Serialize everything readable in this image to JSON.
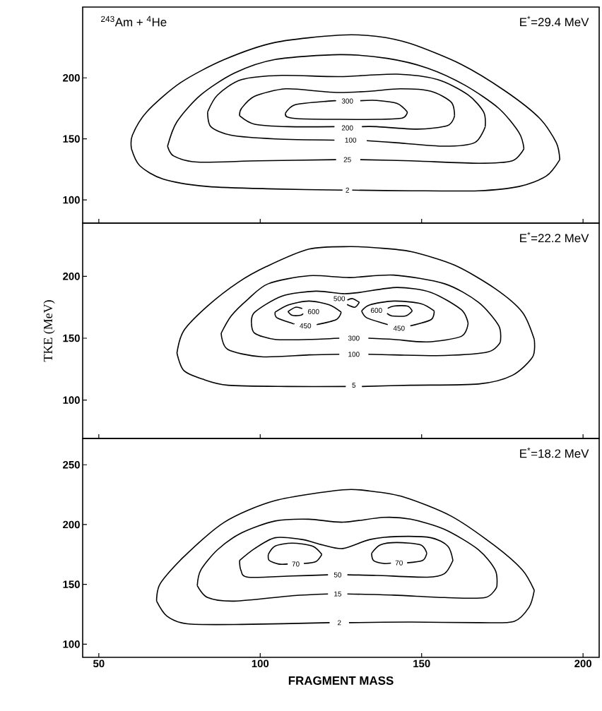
{
  "chart_data": [
    {
      "type": "line",
      "tick_labels": "y",
      "xlim": [
        45,
        205
      ],
      "ylim": [
        81,
        258
      ],
      "xticks": [
        50,
        100,
        150,
        200
      ],
      "yticks": [
        100,
        150,
        200
      ],
      "series": [
        {
          "color": "#000000",
          "x": [
            60.1,
            60.4,
            64.8,
            75.3,
            88.9,
            104.6,
            124.6,
            136.1,
            146.6,
            162.3,
            176.0,
            186.5,
            191.7,
            192.8
          ],
          "values": [
            142,
            153,
            172,
            196,
            215,
            229,
            235,
            234,
            228,
            211,
            189,
            167,
            147,
            133
          ]
        },
        {
          "color": "#000000",
          "x": [
            60.1,
            62.7,
            70.0,
            83.7,
            104.6,
            125.5,
            127,
            128.5,
            146.6,
            167.6,
            180.2,
            188.6,
            192.8
          ],
          "values": [
            142,
            128,
            117,
            111,
            109,
            108,
            null,
            108,
            107.5,
            107.5,
            111,
            119.5,
            133
          ]
        },
        {
          "color": "#000000",
          "x": [
            71.3,
            74.2,
            81.6,
            92.1,
            104.6,
            124.6,
            139.3,
            151.8,
            163.4,
            173.9,
            180.2,
            181.7
          ],
          "values": [
            144,
            164,
            186,
            204,
            215,
            219,
            216,
            208,
            194,
            175,
            155,
            142
          ]
        },
        {
          "color": "#000000",
          "x": [
            71.3,
            73.2,
            80.5,
            99.4,
            123.5,
            127,
            131,
            146.6,
            167.6,
            178.1,
            181.7
          ],
          "values": [
            144,
            136,
            131,
            132,
            133,
            null,
            133,
            132,
            130,
            132,
            142
          ]
        },
        {
          "color": "#000000",
          "x": [
            83.7,
            86.8,
            94.2,
            106.7,
            124.6,
            142.4,
            155.0,
            164.4,
            169.2,
            169.7
          ],
          "values": [
            172,
            186,
            198.5,
            202,
            201,
            203,
            198.5,
            186,
            172,
            160
          ]
        },
        {
          "color": "#000000",
          "x": [
            83.7,
            84.7,
            91.0,
            104.6,
            123,
            128,
            133,
            141.4,
            157.1,
            166.5,
            169.7
          ],
          "values": [
            172,
            160,
            153,
            150,
            149,
            null,
            148.5,
            147,
            144,
            147,
            160
          ]
        },
        {
          "color": "#000000",
          "x": [
            93.6,
            94.2,
            98.3,
            107.8,
            118.3,
            124.6,
            134.0,
            143.5,
            152.9,
            159.2,
            160.2
          ],
          "values": [
            169,
            175,
            185,
            191,
            189,
            188,
            189,
            191,
            189,
            180,
            169
          ]
        },
        {
          "color": "#000000",
          "x": [
            93.6,
            98.3,
            108.8,
            123,
            127,
            131.5,
            136.1,
            148.7,
            158.1,
            160.2
          ],
          "values": [
            169,
            162,
            160,
            160,
            null,
            160,
            160,
            158,
            161,
            169
          ]
        },
        {
          "color": "#000000",
          "x": [
            107.8,
            110.9,
            121.4,
            123.5,
            127,
            131,
            136.1,
            142.4,
            145.6
          ],
          "values": [
            171,
            178,
            181,
            181.2,
            null,
            181.3,
            181.5,
            179,
            172
          ]
        },
        {
          "color": "#000000",
          "x": [
            107.8,
            108.3,
            112.0,
            124.6,
            136.1,
            144.0,
            145.6
          ],
          "values": [
            171,
            168,
            166.5,
            166,
            166,
            167,
            172
          ]
        }
      ],
      "annotations": [
        "E$^{*}$=29.4 MeV",
        "$^{243}$Am + $^{4}$He",
        {
          "text": "300",
          "x": 127,
          "y": 181
        },
        {
          "text": "200",
          "x": 127,
          "y": 159
        },
        {
          "text": "100",
          "x": 128,
          "y": 149
        },
        {
          "text": "25",
          "x": 127,
          "y": 133
        },
        {
          "text": "2",
          "x": 127,
          "y": 108
        }
      ]
    },
    {
      "type": "line",
      "tick_labels": "y",
      "ylabel": "TKE (MeV)",
      "xlim": [
        45,
        205
      ],
      "ylim": [
        69,
        243
      ],
      "xticks": [
        50,
        100,
        150,
        200
      ],
      "yticks": [
        100,
        150,
        200
      ],
      "series": [
        {
          "color": "#000000",
          "x": [
            74.2,
            76.3,
            83.7,
            93.1,
            102.0,
            115.1,
            127.7,
            136.1,
            146.6,
            160.2,
            172.8,
            181.2,
            184.9
          ],
          "values": [
            138,
            156,
            176,
            195,
            208,
            222,
            224,
            223,
            220,
            209,
            190,
            171,
            149
          ]
        },
        {
          "color": "#000000",
          "x": [
            74.2,
            76.3,
            82.1,
            90.0,
            108.8,
            126.5,
            129,
            131.5,
            146.6,
            167.6,
            178.1,
            184.4,
            184.9
          ],
          "values": [
            138,
            124,
            117,
            112,
            111,
            111,
            null,
            111,
            112,
            113,
            120,
            135,
            149
          ]
        },
        {
          "color": "#000000",
          "x": [
            87.9,
            91.0,
            96.2,
            102.5,
            115.1,
            127.7,
            141.4,
            157.1,
            167.6,
            173.9,
            174.4
          ],
          "values": [
            154,
            168,
            181.5,
            194,
            200.5,
            199,
            201,
            194,
            179,
            160,
            147
          ]
        },
        {
          "color": "#000000",
          "x": [
            87.9,
            89.9,
            100.4,
            115.1,
            124.5,
            129,
            133.5,
            141.4,
            157.1,
            170.7,
            174.4
          ],
          "values": [
            154,
            141,
            135,
            136.5,
            137,
            null,
            137,
            136.5,
            136,
            139,
            147
          ]
        },
        {
          "color": "#000000",
          "x": [
            97.3,
            98.3,
            106.7,
            117.2,
            125.6,
            130.9,
            142.4,
            152.9,
            162.3,
            164.4
          ],
          "values": [
            162,
            171,
            184,
            188,
            186,
            187,
            191,
            187,
            173,
            162
          ]
        },
        {
          "color": "#000000",
          "x": [
            97.3,
            98.3,
            104.6,
            115.1,
            124.5,
            129,
            133.5,
            141.4,
            151.8,
            162.3,
            164.4
          ],
          "values": [
            162,
            154,
            149,
            149,
            150,
            null,
            150,
            149,
            147,
            151.5,
            162
          ]
        },
        {
          "color": "#000000",
          "x": [
            104.6,
            108.8,
            115.1,
            121.4,
            125.1
          ],
          "values": [
            171,
            177,
            180,
            177,
            171
          ]
        },
        {
          "color": "#000000",
          "x": [
            104.6,
            105.2,
            109.9,
            110.5,
            114,
            117.5,
            123.5,
            125.1
          ],
          "values": [
            171,
            166.5,
            162,
            161.8,
            null,
            161,
            165,
            171
          ]
        },
        {
          "color": "#000000",
          "x": [
            131.4,
            134.0,
            141.4,
            149.7,
            153.9
          ],
          "values": [
            172,
            177,
            180,
            178,
            172
          ]
        },
        {
          "color": "#000000",
          "x": [
            131.4,
            133.0,
            138.2,
            139.5,
            143,
            146.5,
            152.9,
            153.9
          ],
          "values": [
            172,
            166.5,
            162,
            161,
            null,
            160,
            165,
            172
          ]
        },
        {
          "color": "#000000",
          "x": [
            127.0,
            128.6,
            130.7
          ],
          "values": [
            180.8,
            182,
            179
          ]
        },
        {
          "color": "#000000",
          "x": [
            126.9,
            129.3,
            130.7
          ],
          "values": [
            177.2,
            175,
            179
          ]
        },
        {
          "color": "#000000",
          "x": [
            108.6,
            110.9,
            113.0
          ],
          "values": [
            171.5,
            175,
            174
          ]
        },
        {
          "color": "#000000",
          "x": [
            108.6,
            109.9,
            112.5,
            113.3
          ],
          "values": [
            171.5,
            168.5,
            168.5,
            169.8
          ]
        },
        {
          "color": "#000000",
          "x": [
            139.5,
            141.4,
            145.6,
            147.1
          ],
          "values": [
            174.2,
            176,
            176,
            172
          ]
        },
        {
          "color": "#000000",
          "x": [
            139.3,
            140.8,
            145.0,
            147.1
          ],
          "values": [
            170.0,
            168,
            168,
            172
          ]
        }
      ],
      "annotations": [
        "E$^{*}$=22.2 MeV",
        {
          "text": "500",
          "x": 124.5,
          "y": 182
        },
        {
          "text": "600",
          "x": 116.5,
          "y": 171.5
        },
        {
          "text": "600",
          "x": 136,
          "y": 172.5
        },
        {
          "text": "450",
          "x": 114,
          "y": 160
        },
        {
          "text": "450",
          "x": 143,
          "y": 158
        },
        {
          "text": "300",
          "x": 129,
          "y": 150
        },
        {
          "text": "100",
          "x": 129,
          "y": 137
        },
        {
          "text": "5",
          "x": 129,
          "y": 112
        }
      ]
    },
    {
      "type": "line",
      "xlabel": "FRAGMENT MASS",
      "xlim": [
        45,
        205
      ],
      "ylim": [
        89,
        272
      ],
      "xticks": [
        50,
        100,
        150,
        200
      ],
      "yticks": [
        100,
        150,
        200,
        250
      ],
      "series": [
        {
          "color": "#000000",
          "x": [
            67.9,
            69.0,
            76.3,
            88.9,
            104.6,
            125.6,
            134.0,
            144.5,
            159.2,
            172.8,
            181.2,
            184.9
          ],
          "values": [
            136,
            150.5,
            173,
            202,
            220,
            229,
            228,
            223,
            207,
            182,
            162,
            145
          ]
        },
        {
          "color": "#000000",
          "x": [
            67.9,
            71.1,
            77.4,
            94.2,
            121.5,
            124.5,
            127.5,
            146.6,
            167.6,
            178.6,
            183.3,
            184.9
          ],
          "values": [
            136,
            123.5,
            117,
            116.5,
            118,
            null,
            118,
            118.5,
            118,
            119,
            131,
            145
          ]
        },
        {
          "color": "#000000",
          "x": [
            80.5,
            81.6,
            86.8,
            94.2,
            104.6,
            115.1,
            125.6,
            138.2,
            146.6,
            157.1,
            167.6,
            172.8,
            173.3
          ],
          "values": [
            149,
            162,
            179,
            193,
            203,
            204.5,
            202,
            206,
            204.5,
            196,
            179,
            162,
            148
          ]
        },
        {
          "color": "#000000",
          "x": [
            80.5,
            83.7,
            92.1,
            109.9,
            121,
            124,
            127,
            141.4,
            157.1,
            169.7,
            173.3
          ],
          "values": [
            149,
            139,
            136,
            140.5,
            142,
            null,
            142,
            141,
            139,
            139,
            148
          ]
        },
        {
          "color": "#000000",
          "x": [
            93.6,
            98.3,
            104.6,
            113.0,
            119.3,
            125.6,
            134.0,
            142.4,
            152.9,
            158.1,
            159.7
          ],
          "values": [
            170,
            180,
            189,
            187.5,
            183,
            180,
            187.5,
            190,
            189,
            182,
            170
          ]
        },
        {
          "color": "#000000",
          "x": [
            93.6,
            94.0,
            96.2,
            109.9,
            121,
            124,
            127,
            136.1,
            151.8,
            157.1,
            159.7
          ],
          "values": [
            170,
            162,
            156,
            157,
            158,
            null,
            158,
            157.5,
            156,
            159,
            170
          ]
        },
        {
          "color": "#000000",
          "x": [
            102.5,
            104.6,
            109.9,
            116.2,
            119.1
          ],
          "values": [
            175,
            182,
            184.5,
            182,
            175
          ]
        },
        {
          "color": "#000000",
          "x": [
            102.5,
            102.8,
            105.7,
            108.5,
            111,
            113.5,
            117.2,
            119.1
          ],
          "values": [
            175,
            170,
            167,
            167,
            null,
            167.5,
            169,
            175
          ]
        },
        {
          "color": "#000000",
          "x": [
            134.5,
            137.2,
            142.4,
            149.7,
            151.6
          ],
          "values": [
            176,
            183,
            185,
            183,
            176
          ]
        },
        {
          "color": "#000000",
          "x": [
            134.5,
            135.1,
            138.2,
            140.5,
            143,
            145.5,
            150.3,
            151.6
          ],
          "values": [
            176,
            170,
            167.5,
            167.8,
            null,
            168,
            170,
            176
          ]
        }
      ],
      "annotations": [
        "E$^{*}$=18.2 MeV",
        {
          "text": "70",
          "x": 111,
          "y": 167
        },
        {
          "text": "70",
          "x": 143,
          "y": 168
        },
        {
          "text": "50",
          "x": 124,
          "y": 158
        },
        {
          "text": "15",
          "x": 124,
          "y": 142
        },
        {
          "text": "2",
          "x": 124.5,
          "y": 118
        }
      ]
    }
  ]
}
